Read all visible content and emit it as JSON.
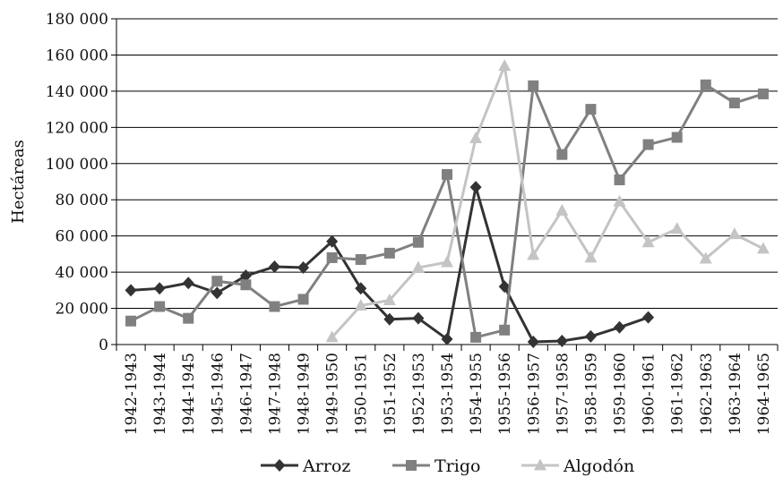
{
  "chart_data": {
    "type": "line",
    "title": "",
    "xlabel": "",
    "ylabel": "Hectáreas",
    "ylim": [
      0,
      180000
    ],
    "yticks": [
      0,
      20000,
      40000,
      60000,
      80000,
      100000,
      120000,
      140000,
      160000,
      180000
    ],
    "ytick_labels": [
      "0",
      "20 000",
      "40 000",
      "60 000",
      "80 000",
      "100 000",
      "120 000",
      "140 000",
      "160 000",
      "180 000"
    ],
    "grid": "horizontal",
    "legend_position": "bottom",
    "categories": [
      "1942-1943",
      "1943-1944",
      "1944-1945",
      "1945-1946",
      "1946-1947",
      "1947-1948",
      "1948-1949",
      "1949-1950",
      "1950-1951",
      "1951-1952",
      "1952-1953",
      "1953-1954",
      "1954-1955",
      "1955-1956",
      "1956-1957",
      "1957-1958",
      "1958-1959",
      "1959-1960",
      "1960-1961",
      "1961-1962",
      "1962-1963",
      "1963-1964",
      "1964-1965"
    ],
    "series": [
      {
        "name": "Arroz",
        "color": "#333333",
        "marker": "diamond",
        "values": [
          30000,
          31000,
          34000,
          28500,
          38000,
          43000,
          42500,
          57000,
          31000,
          14000,
          14500,
          3000,
          87000,
          32000,
          1500,
          2000,
          4500,
          9500,
          15000,
          null,
          null,
          null,
          null
        ]
      },
      {
        "name": "Trigo",
        "color": "#808080",
        "marker": "square",
        "values": [
          13000,
          21000,
          14500,
          35000,
          33000,
          21000,
          25000,
          48000,
          47000,
          50500,
          56500,
          94000,
          4000,
          8000,
          143000,
          105000,
          130000,
          91000,
          110500,
          114500,
          143500,
          133500,
          138500
        ]
      },
      {
        "name": "Algodón",
        "color": "#c4c4c4",
        "marker": "triangle",
        "values": [
          null,
          null,
          null,
          null,
          null,
          null,
          null,
          4000,
          21500,
          24500,
          42500,
          45500,
          114000,
          154000,
          49500,
          74000,
          48000,
          79000,
          56500,
          64000,
          47500,
          61000,
          53000
        ]
      }
    ]
  }
}
